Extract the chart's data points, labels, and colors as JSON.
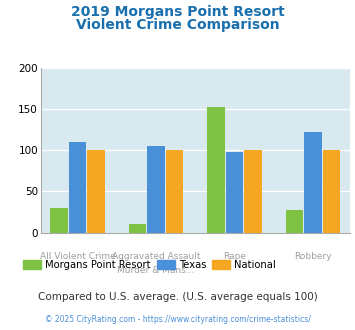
{
  "title_line1": "2019 Morgans Point Resort",
  "title_line2": "Violent Crime Comparison",
  "series": {
    "Morgans Point Resort": [
      30,
      10,
      152,
      27
    ],
    "Texas": [
      110,
      105,
      98,
      122
    ],
    "National": [
      100,
      100,
      100,
      100
    ]
  },
  "colors": {
    "Morgans Point Resort": "#7dc243",
    "Texas": "#4a90d9",
    "National": "#f5a623"
  },
  "ylim": [
    0,
    200
  ],
  "yticks": [
    0,
    50,
    100,
    150,
    200
  ],
  "title_color": "#1a6faf",
  "background_color": "#d8eaf0",
  "note": "Compared to U.S. average. (U.S. average equals 100)",
  "note_color": "#333333",
  "footer": "© 2025 CityRating.com - https://www.cityrating.com/crime-statistics/",
  "footer_color": "#4a90d9",
  "x_labels_row1": [
    "",
    "Aggravated Assault",
    "",
    ""
  ],
  "x_labels_row2": [
    "All Violent Crime",
    "Murder & Mans...",
    "Rape",
    "Robbery"
  ]
}
